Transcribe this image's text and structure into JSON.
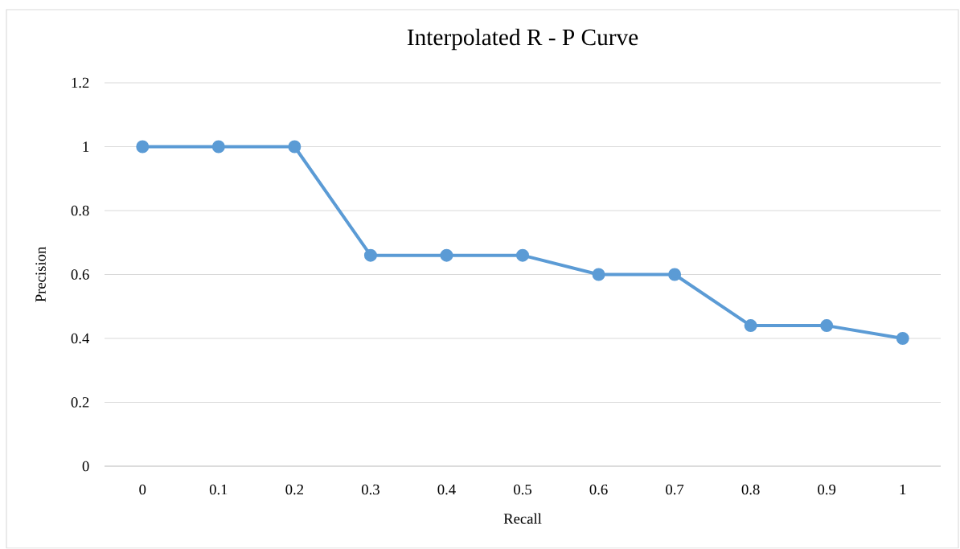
{
  "chart_data": {
    "type": "line",
    "title": "Interpolated R - P Curve",
    "xlabel": "Recall",
    "ylabel": "Precision",
    "categories": [
      "0",
      "0.1",
      "0.2",
      "0.3",
      "0.4",
      "0.5",
      "0.6",
      "0.7",
      "0.8",
      "0.9",
      "1"
    ],
    "values": [
      1,
      1,
      1,
      0.66,
      0.66,
      0.66,
      0.6,
      0.6,
      0.44,
      0.44,
      0.4
    ],
    "color": "#5b9bd5",
    "ylim": [
      0,
      1.2
    ],
    "yticks": [
      0,
      0.2,
      0.4,
      0.6,
      0.8,
      1,
      1.2
    ],
    "grid": "y",
    "marker": "circle",
    "line_style": "solid"
  }
}
